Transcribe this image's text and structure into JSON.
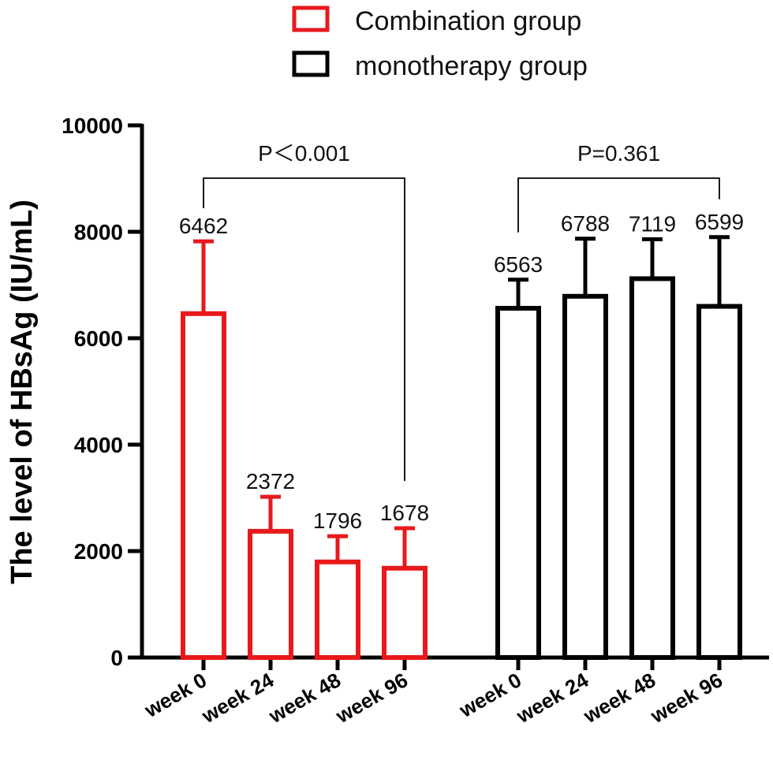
{
  "chart_data": {
    "type": "bar",
    "ylabel": "The level of HBsAg (IU/mL)",
    "xlabel": "",
    "ylim": [
      0,
      10000
    ],
    "yticks": [
      0,
      2000,
      4000,
      6000,
      8000,
      10000
    ],
    "legend_position": "top-center",
    "groups": [
      {
        "name": "Combination group",
        "color": "#e8191c",
        "categories": [
          "week 0",
          "week 24",
          "week 48",
          "week 96"
        ],
        "values": [
          6462,
          2372,
          1796,
          1678
        ],
        "error_upper": [
          7820,
          3020,
          2280,
          2430
        ],
        "value_labels": [
          "6462",
          "2372",
          "1796",
          "1678"
        ],
        "comparison": {
          "label": "P＜0.001",
          "from": 0,
          "to": 3
        }
      },
      {
        "name": "monotherapy group",
        "color": "#000000",
        "categories": [
          "week 0",
          "week 24",
          "week 48",
          "week 96"
        ],
        "values": [
          6563,
          6788,
          7119,
          6599
        ],
        "error_upper": [
          7100,
          7870,
          7860,
          7900
        ],
        "value_labels": [
          "6563",
          "6788",
          "7119",
          "6599"
        ],
        "comparison": {
          "label": "P=0.361",
          "from": 0,
          "to": 3
        }
      }
    ]
  }
}
